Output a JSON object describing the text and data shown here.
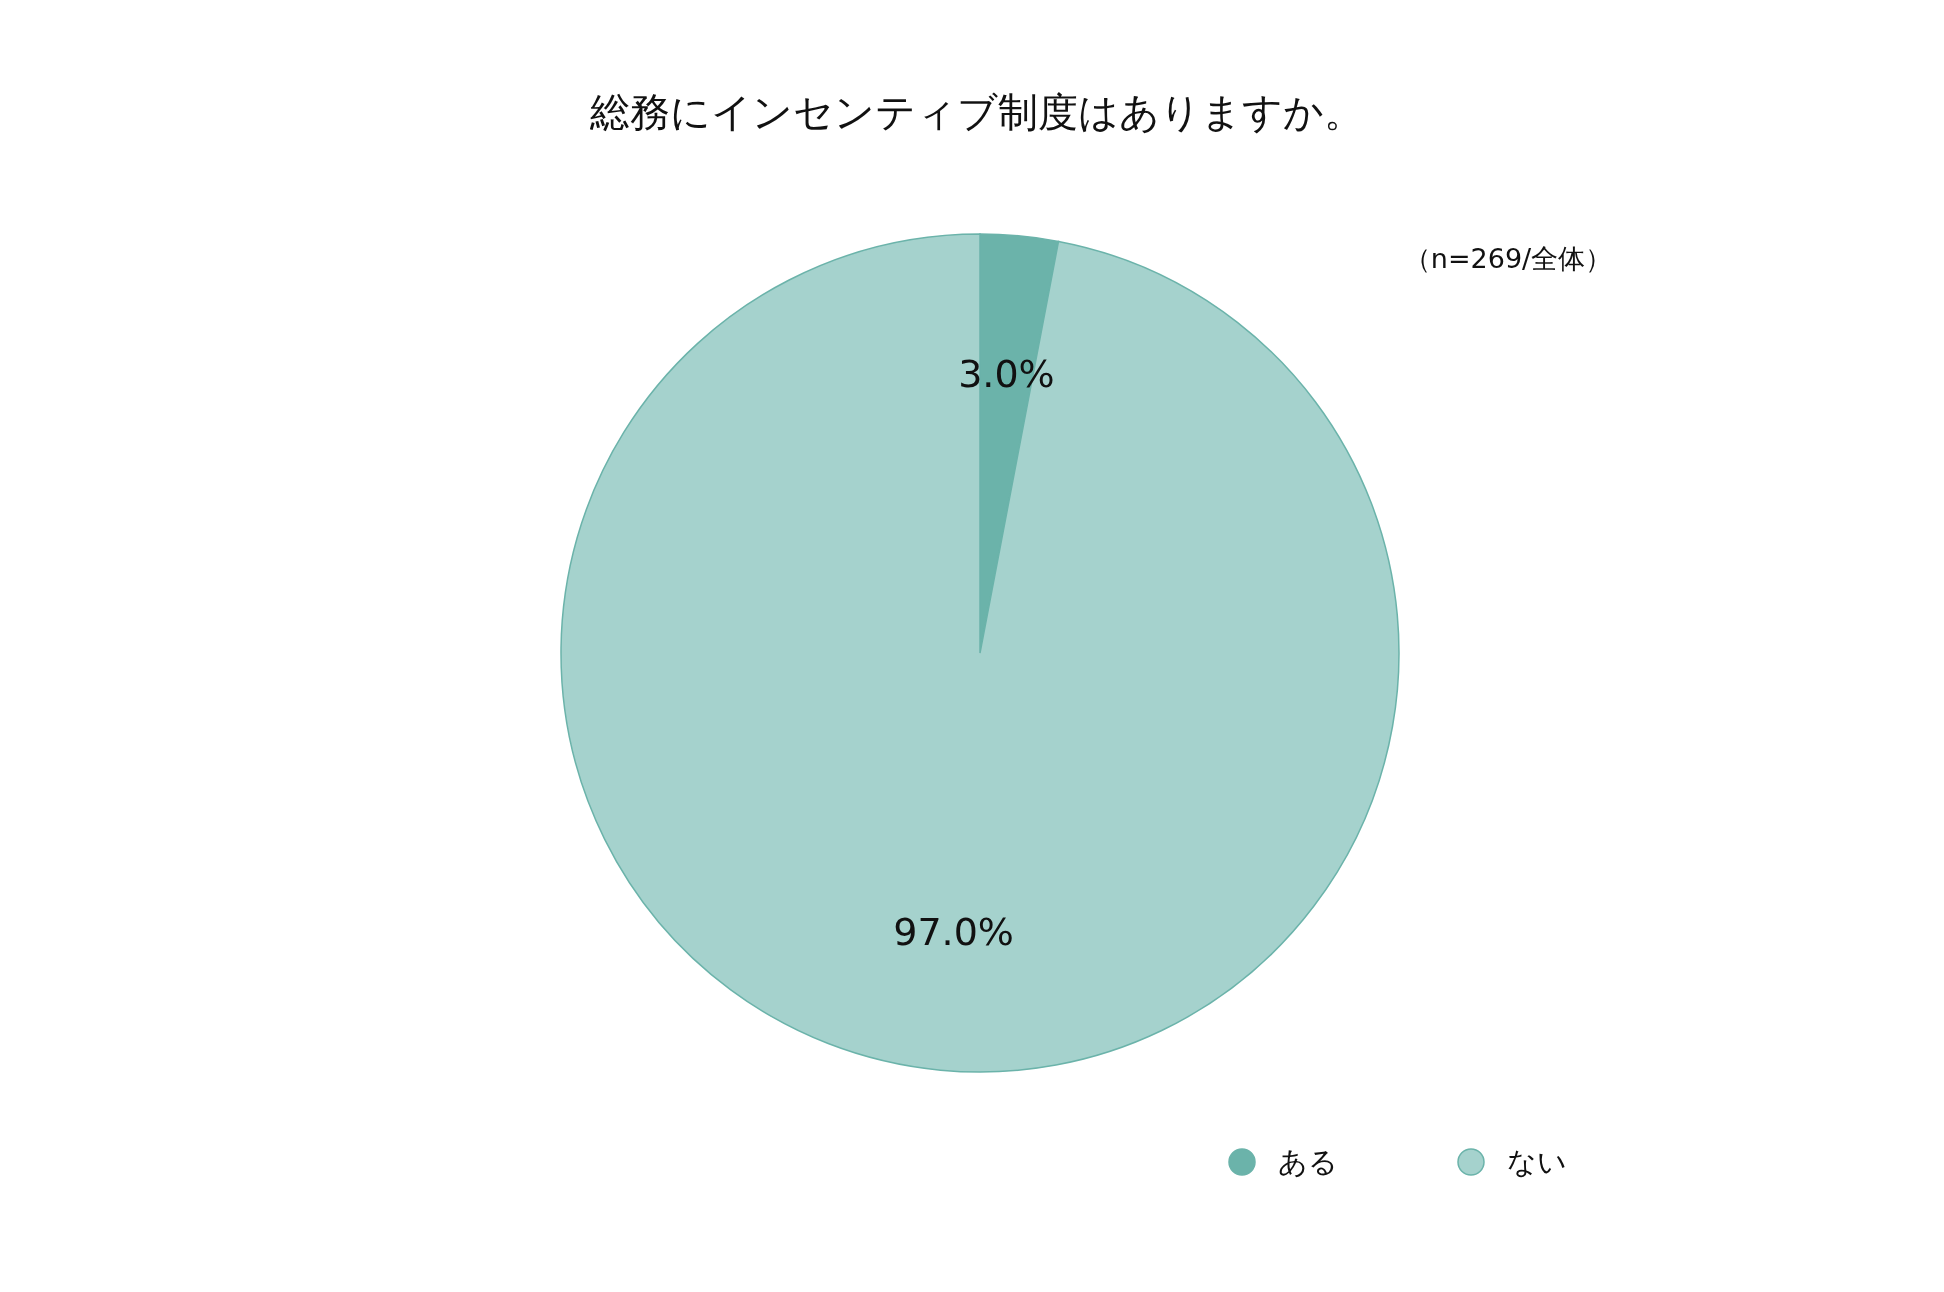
{
  "chart_data": {
    "type": "pie",
    "title": "総務にインセンティブ制度はありますか。",
    "categories": [
      "ある",
      "ない"
    ],
    "values": [
      3.0,
      97.0
    ],
    "colors": [
      "#6bb3aa",
      "#a5d2cd"
    ],
    "value_labels": [
      "3.0%",
      "97.0%"
    ],
    "annotations": [
      "（n=269/全体）"
    ],
    "legend": "bottom"
  }
}
